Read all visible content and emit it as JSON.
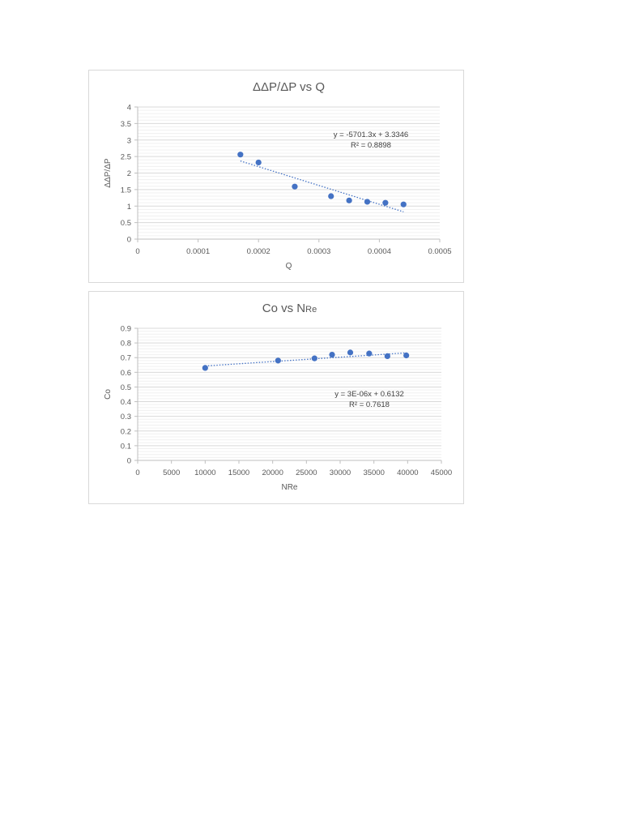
{
  "chart_data": [
    {
      "type": "scatter",
      "title": "ΔΔP/ΔP vs Q",
      "xlabel": "Q",
      "ylabel": "ΔΔP/ΔP",
      "xlim": [
        0,
        0.0005
      ],
      "ylim": [
        0,
        4
      ],
      "xticks": [
        0,
        0.0001,
        0.0002,
        0.0003,
        0.0004,
        0.0005
      ],
      "xtick_labels": [
        "0",
        "0.0001",
        "0.0002",
        "0.0003",
        "0.0004",
        "0.0005"
      ],
      "yticks": [
        0,
        0.5,
        1,
        1.5,
        2,
        2.5,
        3,
        3.5,
        4
      ],
      "ytick_labels": [
        "0",
        "0.5",
        "1",
        "1.5",
        "2",
        "2.5",
        "3",
        "3.5",
        "4"
      ],
      "series": [
        {
          "name": "ΔΔP/ΔP",
          "x": [
            0.00017,
            0.0002,
            0.00026,
            0.00032,
            0.00035,
            0.00038,
            0.00041,
            0.00044
          ],
          "y": [
            2.56,
            2.32,
            1.59,
            1.3,
            1.17,
            1.13,
            1.1,
            1.05
          ]
        }
      ],
      "trendline": {
        "type": "linear",
        "slope": -5701.3,
        "intercept": 3.3346,
        "x_range": [
          0.00017,
          0.00044
        ],
        "equation": "y = -5701.3x + 3.3346",
        "r2": "R² = 0.8898"
      },
      "grid": true
    },
    {
      "type": "scatter",
      "title": "Co vs N",
      "title_sub": "Re",
      "xlabel": "NRe",
      "ylabel": "Co",
      "xlim": [
        0,
        45000
      ],
      "ylim": [
        0,
        0.9
      ],
      "xticks": [
        0,
        5000,
        10000,
        15000,
        20000,
        25000,
        30000,
        35000,
        40000,
        45000
      ],
      "xtick_labels": [
        "0",
        "5000",
        "10000",
        "15000",
        "20000",
        "25000",
        "30000",
        "35000",
        "40000",
        "45000"
      ],
      "yticks": [
        0,
        0.1,
        0.2,
        0.3,
        0.4,
        0.5,
        0.6,
        0.7,
        0.8,
        0.9
      ],
      "ytick_labels": [
        "0",
        "0.1",
        "0.2",
        "0.3",
        "0.4",
        "0.5",
        "0.6",
        "0.7",
        "0.8",
        "0.9"
      ],
      "series": [
        {
          "name": "Co",
          "x": [
            10000,
            20800,
            26200,
            28800,
            31500,
            34300,
            37000,
            39800
          ],
          "y": [
            0.63,
            0.68,
            0.695,
            0.72,
            0.735,
            0.728,
            0.71,
            0.715
          ]
        }
      ],
      "trendline": {
        "type": "linear",
        "slope": 3e-06,
        "intercept": 0.6132,
        "x_range": [
          10000,
          39800
        ],
        "equation": "y = 3E-06x + 0.6132",
        "r2": "R² = 0.7618"
      },
      "grid": true
    }
  ]
}
